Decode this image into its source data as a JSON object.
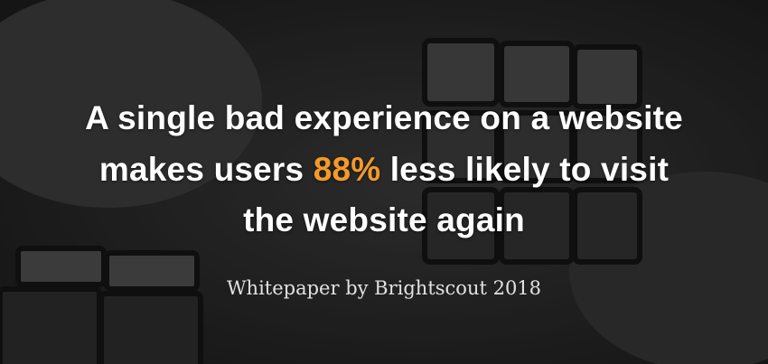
{
  "headline": {
    "line1": "A single bad experience on a website",
    "line2_before": "makes users",
    "highlight": "88%",
    "line2_after": "less likely to visit",
    "line3": "the website again"
  },
  "source": "Whitepaper by Brightscout 2018"
}
